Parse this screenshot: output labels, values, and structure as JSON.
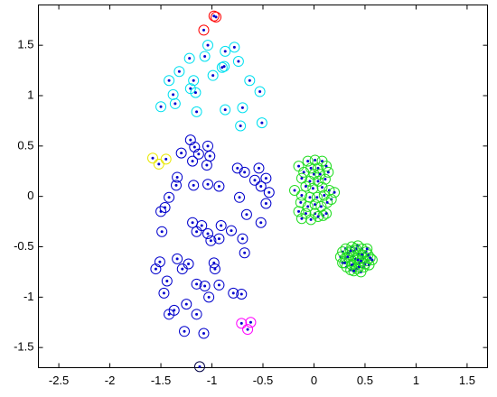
{
  "chart_data": {
    "type": "scatter",
    "xlim": [
      -2.7,
      1.7
    ],
    "ylim": [
      -1.7,
      1.9
    ],
    "xticks": [
      -2.5,
      -2,
      -1.5,
      -1,
      -0.5,
      0,
      0.5,
      1,
      1.5
    ],
    "yticks": [
      -1.5,
      -1,
      -0.5,
      0,
      0.5,
      1,
      1.5
    ],
    "grid": false,
    "dot_color": "#0000cc",
    "series": [
      {
        "color": "#ff0000",
        "x": [
          -0.98,
          -0.96,
          -1.08
        ],
        "y": [
          1.79,
          1.78,
          1.65
        ]
      },
      {
        "color": "#00e0f0",
        "x": [
          -1.04,
          -0.87,
          -0.78,
          -1.22,
          -1.07,
          -0.74,
          -0.9,
          -0.88,
          -1.32,
          -1.42,
          -0.99,
          -1.18,
          -0.63,
          -1.21,
          -1.16,
          -1.38,
          -0.53,
          -1.36,
          -1.5,
          -0.87,
          -0.7,
          -1.15,
          -0.51,
          -0.72
        ],
        "y": [
          1.5,
          1.44,
          1.48,
          1.37,
          1.39,
          1.34,
          1.28,
          1.29,
          1.24,
          1.15,
          1.2,
          1.15,
          1.15,
          1.07,
          1.03,
          1.01,
          1.04,
          0.92,
          0.89,
          0.86,
          0.88,
          0.84,
          0.73,
          0.7
        ]
      },
      {
        "color": "#e8e800",
        "x": [
          -1.58,
          -1.52,
          -1.45
        ],
        "y": [
          0.38,
          0.32,
          0.37
        ]
      },
      {
        "color": "#0000cc",
        "x": [
          -1.21,
          -1.17,
          -1.04,
          -1.3,
          -1.13,
          -1.02,
          -1.19,
          -1.05,
          -0.75,
          -0.54,
          -0.68,
          -0.47,
          -0.58,
          -1.34,
          -1.35,
          -1.18,
          -0.93,
          -1.04,
          -0.52,
          -0.44,
          -1.42,
          -0.73,
          -0.47,
          -1.46,
          -1.5,
          -0.66,
          -0.52,
          -1.19,
          -1.1,
          -0.91,
          -1.49,
          -1.15,
          -0.81,
          -1.04,
          -0.93,
          -0.7,
          -1.01,
          -0.68,
          -1.34,
          -1.51,
          -1.23,
          -0.98,
          -1.55,
          -1.29,
          -0.97,
          -1.44,
          -1.15,
          -0.93,
          -1.07,
          -1.47,
          -0.79,
          -0.71,
          -1.03,
          -1.25,
          -1.37,
          -1.42,
          -1.15,
          -1.27,
          -1.08
        ],
        "y": [
          0.56,
          0.49,
          0.5,
          0.43,
          0.42,
          0.4,
          0.35,
          0.31,
          0.28,
          0.28,
          0.24,
          0.18,
          0.16,
          0.19,
          0.11,
          0.11,
          0.1,
          0.12,
          0.1,
          0.04,
          -0.01,
          -0.01,
          -0.07,
          -0.11,
          -0.15,
          -0.18,
          -0.26,
          -0.26,
          -0.29,
          -0.29,
          -0.35,
          -0.35,
          -0.34,
          -0.37,
          -0.42,
          -0.42,
          -0.44,
          -0.56,
          -0.62,
          -0.65,
          -0.67,
          -0.66,
          -0.72,
          -0.72,
          -0.72,
          -0.84,
          -0.87,
          -0.88,
          -0.89,
          -0.96,
          -0.96,
          -0.97,
          -1.0,
          -1.07,
          -1.13,
          -1.17,
          -1.17,
          -1.34,
          -1.36
        ]
      },
      {
        "color": "#ff00ff",
        "x": [
          -0.71,
          -0.62,
          -0.65
        ],
        "y": [
          -1.26,
          -1.25,
          -1.32
        ]
      },
      {
        "color": "#000044",
        "x": [
          -1.12
        ],
        "y": [
          -1.69
        ]
      },
      {
        "color": "#22dd22",
        "x": [
          -0.15,
          -0.06,
          0.01,
          0.08,
          -0.03,
          0.04,
          0.12,
          -0.1,
          0.0,
          0.06,
          0.14,
          -0.12,
          -0.04,
          0.04,
          0.11,
          -0.19,
          -0.08,
          -0.01,
          0.08,
          0.15,
          0.2,
          -0.12,
          -0.04,
          0.03,
          0.1,
          0.17,
          -0.13,
          -0.06,
          0.01,
          0.07,
          0.13,
          -0.15,
          -0.08,
          0.01,
          0.09,
          -0.12,
          -0.03,
          0.04,
          0.12,
          0.26,
          0.28,
          0.28,
          0.31,
          0.31,
          0.32,
          0.34,
          0.35,
          0.36,
          0.37,
          0.38,
          0.39,
          0.4,
          0.41,
          0.42,
          0.43,
          0.44,
          0.45,
          0.46,
          0.47,
          0.48,
          0.49,
          0.51,
          0.52,
          0.53,
          0.54,
          0.55,
          0.57,
          0.33,
          0.37,
          0.41,
          0.44,
          0.47,
          0.5,
          0.36,
          0.43,
          0.39,
          0.3,
          0.52,
          0.46
        ],
        "y": [
          0.3,
          0.35,
          0.36,
          0.35,
          0.28,
          0.28,
          0.3,
          0.24,
          0.22,
          0.22,
          0.24,
          0.18,
          0.15,
          0.15,
          0.17,
          0.06,
          0.1,
          0.08,
          0.09,
          0.06,
          0.04,
          0.01,
          -0.01,
          -0.01,
          0.01,
          -0.03,
          -0.06,
          -0.1,
          -0.08,
          -0.1,
          -0.06,
          -0.15,
          -0.17,
          -0.17,
          -0.19,
          -0.22,
          -0.23,
          -0.2,
          -0.17,
          -0.6,
          -0.55,
          -0.66,
          -0.52,
          -0.61,
          -0.7,
          -0.56,
          -0.64,
          -0.73,
          -0.5,
          -0.59,
          -0.67,
          -0.54,
          -0.62,
          -0.72,
          -0.49,
          -0.57,
          -0.66,
          -0.75,
          -0.52,
          -0.61,
          -0.7,
          -0.55,
          -0.64,
          -0.58,
          -0.68,
          -0.61,
          -0.63,
          -0.6,
          -0.68,
          -0.52,
          -0.7,
          -0.58,
          -0.67,
          -0.54,
          -0.63,
          -0.74,
          -0.66,
          -0.52,
          -0.64
        ]
      }
    ]
  }
}
